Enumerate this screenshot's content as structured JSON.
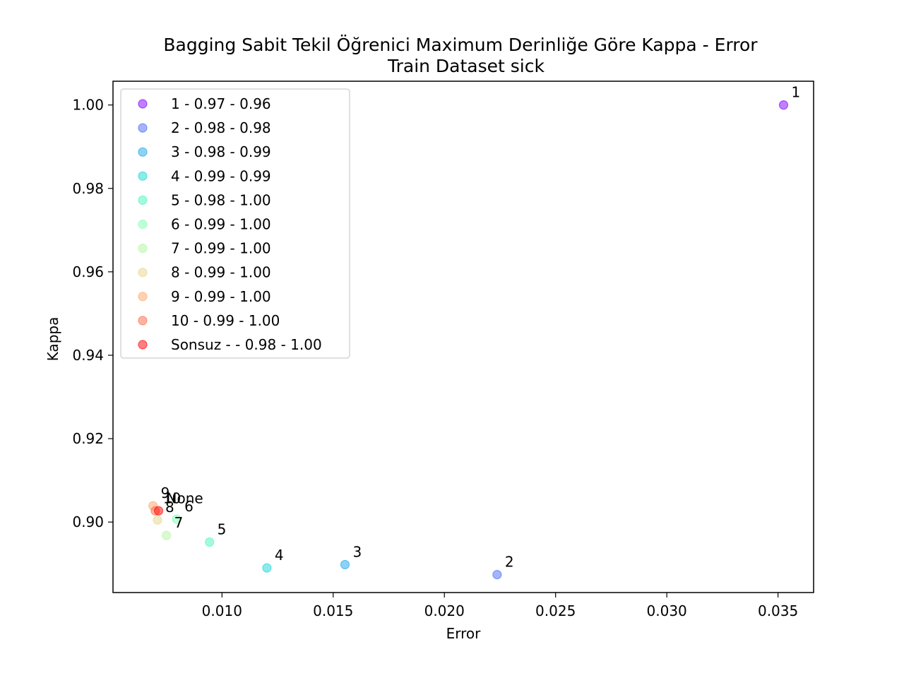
{
  "chart_data": {
    "type": "scatter",
    "title": "Bagging Sabit Tekil Öğrenici Maximum Derinliğe Göre Kappa - Error",
    "subtitle": "Train Dataset  sick",
    "xlabel": "Error",
    "ylabel": "Kappa",
    "xlim": [
      0.0051,
      0.0366
    ],
    "ylim": [
      0.8831,
      1.0057
    ],
    "xticks": [
      0.01,
      0.015,
      0.02,
      0.025,
      0.03,
      0.035
    ],
    "xtick_labels": [
      "0.010",
      "0.015",
      "0.020",
      "0.025",
      "0.030",
      "0.035"
    ],
    "yticks": [
      0.9,
      0.92,
      0.94,
      0.96,
      0.98,
      1.0
    ],
    "ytick_labels": [
      "0.90",
      "0.92",
      "0.94",
      "0.96",
      "0.98",
      "1.00"
    ],
    "grid": false,
    "legend_position": "top-left",
    "series": [
      {
        "name": "1 - 0.97 - 0.96",
        "label": "1",
        "x": 0.03525,
        "y": 1.0,
        "color": "#8000ff"
      },
      {
        "name": "2 - 0.98 - 0.98",
        "label": "2",
        "x": 0.02237,
        "y": 0.8874,
        "color": "#4a6afb"
      },
      {
        "name": "3 - 0.98 - 0.99",
        "label": "3",
        "x": 0.01553,
        "y": 0.8898,
        "color": "#1ba5ec"
      },
      {
        "name": "4 - 0.99 - 0.99",
        "label": "4",
        "x": 0.01202,
        "y": 0.889,
        "color": "#17d7d7"
      },
      {
        "name": "5 - 0.98 - 1.00",
        "label": "5",
        "x": 0.00944,
        "y": 0.8952,
        "color": "#4cf6bb"
      },
      {
        "name": "6 - 0.99 - 1.00",
        "label": "6",
        "x": 0.00796,
        "y": 0.9007,
        "color": "#80ffb4"
      },
      {
        "name": "7 - 0.99 - 1.00",
        "label": "7",
        "x": 0.0075,
        "y": 0.8968,
        "color": "#b4f6a4"
      },
      {
        "name": "8 - 0.99 - 1.00",
        "label": "8",
        "x": 0.0071,
        "y": 0.9005,
        "color": "#e6d68a"
      },
      {
        "name": "9 - 0.99 - 1.00",
        "label": "9",
        "x": 0.0069,
        "y": 0.9039,
        "color": "#ffa567"
      },
      {
        "name": "10 - 0.99 - 1.00",
        "label": "10",
        "x": 0.007,
        "y": 0.9027,
        "color": "#ff6a45"
      },
      {
        "name": "Sonsuz -  - 0.98 - 1.00",
        "label": "None",
        "x": 0.00715,
        "y": 0.9027,
        "color": "#ff0000"
      }
    ]
  }
}
